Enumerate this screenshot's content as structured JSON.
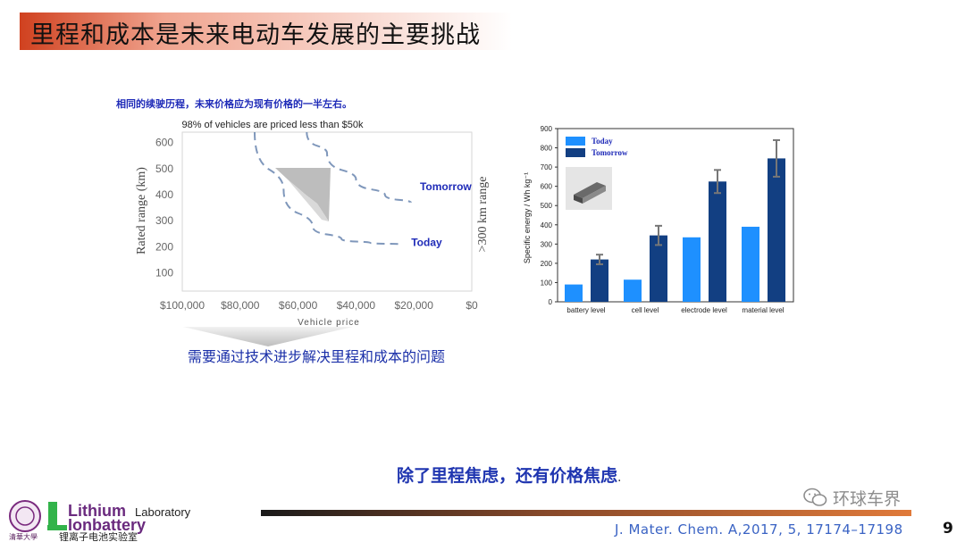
{
  "slide": {
    "title": "里程和成本是未来电动车发展的主要挑战",
    "note": "相同的续驶历程，未来价格应为现有价格的一半左右。",
    "conclusion": "需要通过技术进步解决里程和成本的问题",
    "bottom_statement": "除了里程焦虑，还有价格焦虑",
    "bottom_statement_suffix": ".",
    "citation": "J. Mater. Chem. A,2017, 5, 17174–17198",
    "page_number": "9",
    "watermark": "环球车界",
    "colors": {
      "accent_red": "#d0411f",
      "text_blue": "#1f2bb8",
      "bar_light": "#1e90ff",
      "bar_dark": "#123f82"
    }
  },
  "logo": {
    "line1": "Lithium",
    "line1_suffix": "Laboratory",
    "line2": "Ionbattery",
    "chinese": "锂离子电池实验室",
    "seal_text": "清華大學"
  },
  "chart_data": [
    {
      "type": "line",
      "title": "98% of vehicles are priced less than $50k",
      "xlabel": "Vehicle price",
      "ylabel": "Rated range (km)",
      "right_label": ">300 km range",
      "x_ticks": [
        "$100,000",
        "$80,000",
        "$60,000",
        "$40,000",
        "$20,000",
        "$0"
      ],
      "y_ticks": [
        100,
        200,
        300,
        400,
        500,
        600
      ],
      "xlim": [
        100000,
        0
      ],
      "ylim": [
        30,
        640
      ],
      "series": [
        {
          "name": "Today",
          "style": "dashed",
          "points": [
            [
              75000,
              640
            ],
            [
              65000,
              420
            ],
            [
              55000,
              280
            ],
            [
              45000,
              230
            ],
            [
              35000,
              215
            ],
            [
              24000,
              210
            ]
          ]
        },
        {
          "name": "Tomorrow",
          "style": "dashed",
          "points": [
            [
              57000,
              640
            ],
            [
              50000,
              560
            ],
            [
              40000,
              460
            ],
            [
              30000,
              400
            ],
            [
              21000,
              370
            ]
          ]
        }
      ],
      "grid": false
    },
    {
      "type": "bar",
      "ylabel": "Specific energy / Wh kg⁻¹",
      "categories": [
        "battery level",
        "cell level",
        "electrode level",
        "material level"
      ],
      "ylim": [
        0,
        900
      ],
      "y_ticks": [
        0,
        100,
        200,
        300,
        400,
        500,
        600,
        700,
        800,
        900
      ],
      "series": [
        {
          "name": "Today",
          "values": [
            90,
            115,
            335,
            390
          ]
        },
        {
          "name": "Tomorrow",
          "values": [
            220,
            345,
            625,
            745
          ],
          "errors": [
            25,
            50,
            60,
            95
          ]
        }
      ],
      "legend": "top-left",
      "grid": false
    }
  ]
}
